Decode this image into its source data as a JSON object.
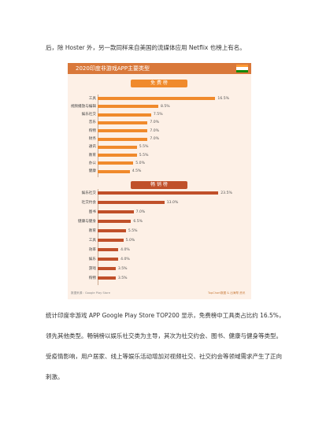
{
  "top_text": "后，除 Hoster 外，另一款同样来自美国的流媒体应用 Netflix 也榜上有名。",
  "figure": {
    "title": "2020印度非游戏APP主要类型",
    "source": "数据来源：Google Play Store",
    "brand": "TopChart数据 & 出海帮 资讯",
    "flag_colors": [
      "#ff9933",
      "#ffffff",
      "#138808"
    ],
    "accent": "#d9783a",
    "free_label": "免 费 榜",
    "grossing_label": "畅 销 榜"
  },
  "chart_data": [
    {
      "type": "bar",
      "orientation": "horizontal",
      "title": "免费榜",
      "color": "#f08a2c",
      "categories": [
        "工具",
        "视频播放与编辑",
        "娱乐社交",
        "音乐",
        "购物",
        "财务",
        "通讯",
        "教育",
        "办公",
        "健康"
      ],
      "values": [
        16.5,
        8.5,
        7.5,
        7.0,
        7.0,
        7.0,
        5.5,
        5.5,
        5.0,
        4.5
      ],
      "value_labels": [
        "16.5%",
        "8.5%",
        "7.5%",
        "7.0%",
        "7.0%",
        "7.0%",
        "5.5%",
        "5.5%",
        "5.0%",
        "4.5%"
      ],
      "xlim": [
        0,
        18
      ]
    },
    {
      "type": "bar",
      "orientation": "horizontal",
      "title": "畅销榜",
      "color": "#c0502a",
      "categories": [
        "娱乐社交",
        "社交约会",
        "图书",
        "健康与健身",
        "教育",
        "工具",
        "效率",
        "娱乐",
        "游戏",
        "购物"
      ],
      "values": [
        23.5,
        13.0,
        7.0,
        6.5,
        5.5,
        5.0,
        4.0,
        4.0,
        3.5,
        3.5
      ],
      "value_labels": [
        "23.5%",
        "13.0%",
        "7.0%",
        "6.5%",
        "5.5%",
        "5.0%",
        "4.0%",
        "4.0%",
        "3.5%",
        "3.5%"
      ],
      "xlim": [
        0,
        25
      ]
    }
  ],
  "paragraph": [
    "统计印度非游戏 APP Google Play Store TOP200 显示，免费榜中工具类占比约 16.5%，",
    "领先其他类型。畅销榜以娱乐社交类为主导，其次为社交约会、图书、健康与健身等类型。",
    "受疫情影响，用户居家、线上等娱乐活动增加对视频社交、社交约会等领域需求产生了正向",
    "刺激。"
  ]
}
